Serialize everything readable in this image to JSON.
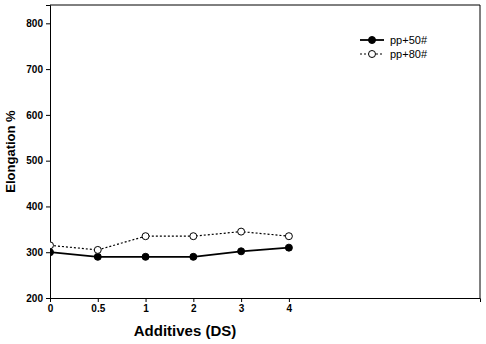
{
  "chart_data": {
    "type": "line",
    "x_label": "Additives (DS)",
    "y_label": "Elongation %",
    "categories": [
      "0",
      "0.5",
      "1",
      "2",
      "3",
      "4"
    ],
    "series": [
      {
        "name": "pp+50#",
        "color": "#000000",
        "marker": "filled-circle",
        "line_style": "solid",
        "values": [
          300,
          290,
          290,
          290,
          302,
          310
        ]
      },
      {
        "name": "pp+80#",
        "color": "#000000",
        "marker": "open-circle",
        "line_style": "dotted",
        "values": [
          315,
          305,
          335,
          335,
          345,
          335
        ]
      }
    ],
    "ylim": [
      200,
      840
    ],
    "yticks": [
      200,
      300,
      400,
      500,
      600,
      700,
      800
    ],
    "grid": false,
    "legend": "upper right"
  }
}
